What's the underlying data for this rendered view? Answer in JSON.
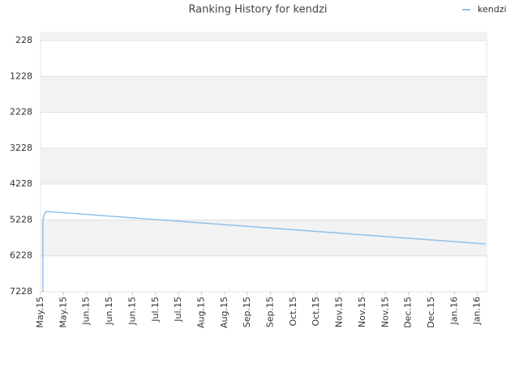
{
  "chart_data": {
    "type": "line",
    "title": "Ranking History for kendzi",
    "x": [
      0.1,
      0.1,
      0.15,
      0.25,
      19.35
    ],
    "series": [
      {
        "name": "kendzi",
        "color": "#90c0ec",
        "values": [
          7228,
          5228,
          5100,
          4990,
          5896
        ]
      }
    ],
    "xlim": [
      0,
      19.4
    ],
    "xticks": [
      {
        "value": 0,
        "label": "May.15"
      },
      {
        "value": 1,
        "label": "May.15"
      },
      {
        "value": 2,
        "label": "Jun.15"
      },
      {
        "value": 3,
        "label": "Jun.15"
      },
      {
        "value": 4,
        "label": "Jun.15"
      },
      {
        "value": 5,
        "label": "Jul.15"
      },
      {
        "value": 6,
        "label": "Jul.15"
      },
      {
        "value": 7,
        "label": "Aug.15"
      },
      {
        "value": 8,
        "label": "Aug.15"
      },
      {
        "value": 9,
        "label": "Sep.15"
      },
      {
        "value": 10,
        "label": "Sep.15"
      },
      {
        "value": 11,
        "label": "Oct.15"
      },
      {
        "value": 12,
        "label": "Oct.15"
      },
      {
        "value": 13,
        "label": "Nov.15"
      },
      {
        "value": 14,
        "label": "Nov.15"
      },
      {
        "value": 15,
        "label": "Nov.15"
      },
      {
        "value": 16,
        "label": "Dec.15"
      },
      {
        "value": 17,
        "label": "Dec.15"
      },
      {
        "value": 18,
        "label": "Jan.16"
      },
      {
        "value": 19,
        "label": "Jan.16"
      }
    ],
    "ylim": [
      228,
      7228
    ],
    "yticks": [
      228,
      1228,
      2228,
      3228,
      4228,
      5228,
      6228,
      7228
    ],
    "invert_y": true,
    "grid": true,
    "legend": "top-right"
  }
}
